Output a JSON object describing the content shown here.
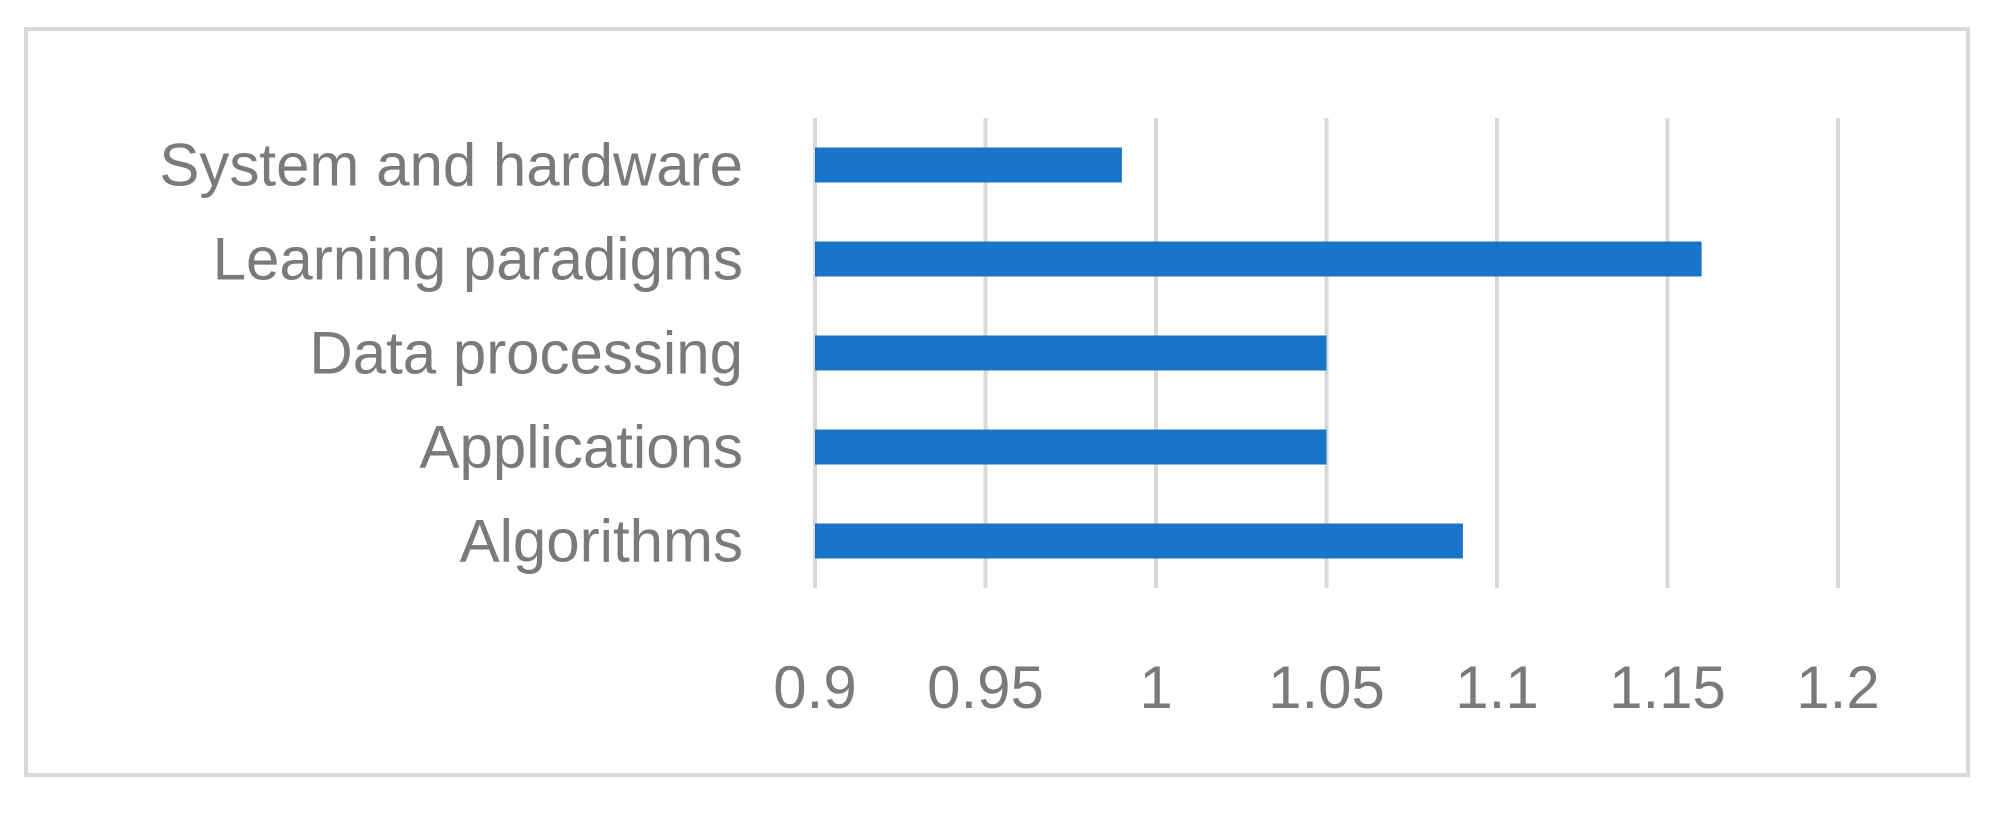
{
  "chart_data": {
    "type": "bar",
    "orientation": "horizontal",
    "categories": [
      "System and hardware",
      "Learning paradigms",
      "Data processing",
      "Applications",
      "Algorithms"
    ],
    "values": [
      0.99,
      1.16,
      1.05,
      1.05,
      1.09
    ],
    "xlim": [
      0.9,
      1.2
    ],
    "x_ticks": [
      "0.9",
      "0.95",
      "1",
      "1.05",
      "1.1",
      "1.15",
      "1.2"
    ],
    "title": "",
    "xlabel": "",
    "ylabel": "",
    "grid": "vertical",
    "legend": "none",
    "colors": {
      "bar": "#1874c9",
      "grid": "#d9d9d9",
      "text": "#7a7a7a",
      "border": "#d9d9d9"
    }
  }
}
